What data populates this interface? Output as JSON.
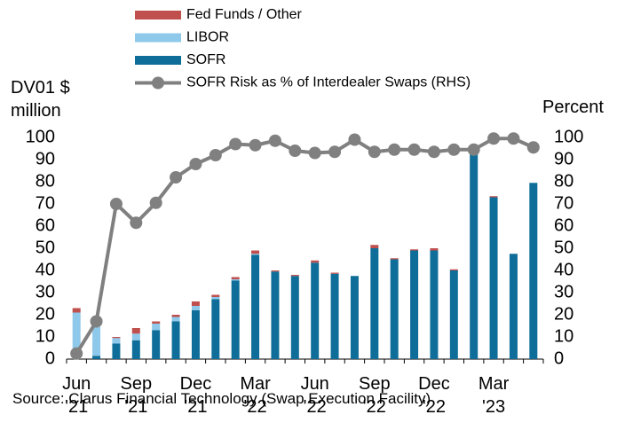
{
  "chart_data": {
    "type": "bar",
    "y_label": "DV01 $\nmillion",
    "y2_label": "Percent",
    "source": "Source: Clarus Financial Technology (Swap Execution Facility)",
    "categories": [
      "Jun\n'21",
      null,
      null,
      "Sep\n'21",
      null,
      null,
      "Dec\n'21",
      null,
      null,
      "Mar\n'22",
      null,
      null,
      "Jun\n'22",
      null,
      null,
      "Sep\n'22",
      null,
      null,
      "Dec\n'22",
      null,
      null,
      "Mar\n'23",
      null,
      null
    ],
    "series": [
      {
        "name": "Fed Funds / Other",
        "color": "#c0504d",
        "type": "bar",
        "values": [
          2,
          0,
          0.5,
          2.5,
          1,
          1,
          2,
          1,
          1,
          1.5,
          0.5,
          0.5,
          1,
          0.5,
          0,
          1.5,
          0.5,
          0.5,
          1,
          0.5,
          0,
          0.5,
          0,
          0
        ]
      },
      {
        "name": "LIBOR",
        "color": "#8ec8ea",
        "type": "bar",
        "values": [
          21,
          13,
          2.5,
          3,
          3,
          2,
          2,
          1,
          0.5,
          0.5,
          0,
          0,
          0,
          0,
          0,
          0,
          0,
          0,
          0,
          0,
          0,
          0,
          0,
          0
        ]
      },
      {
        "name": "SOFR",
        "color": "#0f6e99",
        "type": "bar",
        "values": [
          0,
          1.5,
          7,
          8.5,
          13,
          17,
          22,
          27,
          35.5,
          47,
          39.5,
          37.5,
          43.5,
          38.5,
          37.5,
          50,
          45,
          49,
          49,
          40,
          93.5,
          73,
          47.5,
          79.5
        ]
      },
      {
        "name": "SOFR Risk as % of Interdealer Swaps (RHS)",
        "color": "#808080",
        "type": "line",
        "axis": "y2",
        "values": [
          2.5,
          17,
          70,
          61.5,
          70.5,
          82,
          88,
          92,
          97,
          96.5,
          98.5,
          94,
          93,
          93.5,
          99,
          93.5,
          94.5,
          94.5,
          93.5,
          94.5,
          94.5,
          99.5,
          99.5,
          95.5
        ]
      }
    ],
    "ylim": [
      0,
      100
    ],
    "yticks": [
      0,
      10,
      20,
      30,
      40,
      50,
      60,
      70,
      80,
      90,
      100
    ],
    "y2lim": [
      0,
      100
    ],
    "y2ticks": [
      0,
      10,
      20,
      30,
      40,
      50,
      60,
      70,
      80,
      90,
      100
    ],
    "stacked": true,
    "grid": false
  }
}
